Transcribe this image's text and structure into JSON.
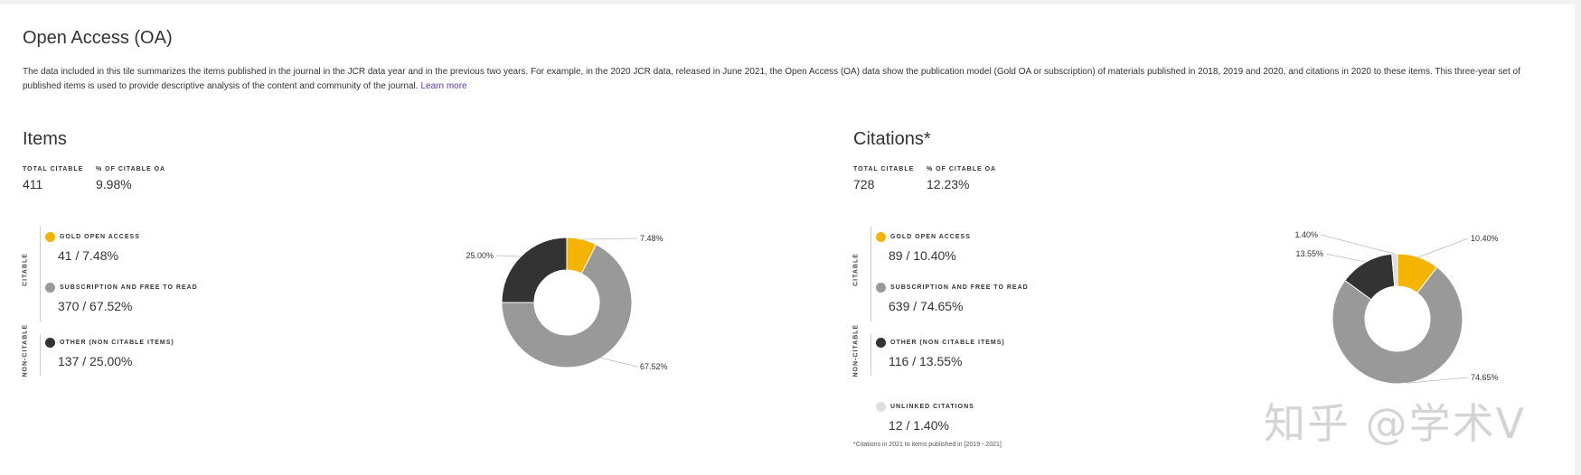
{
  "header": {
    "title": "Open Access (OA)",
    "description": "The data included in this tile summarizes the items published in the journal in the JCR data year and in the previous two years. For example, in the 2020 JCR data, released in June 2021, the Open Access (OA) data show the publication model (Gold OA or subscription) of materials published in 2018, 2019 and 2020, and citations in 2020 to these items. This three-year set of published items is used to provide descriptive analysis of the content and community of the journal.",
    "learn_more": "Learn more"
  },
  "items": {
    "title": "Items",
    "total_label": "TOTAL CITABLE",
    "total_value": "411",
    "pct_label": "% OF CITABLE OA",
    "pct_value": "9.98%",
    "citable_label": "CITABLE",
    "noncitable_label": "NON-CITABLE",
    "legend": [
      {
        "label": "GOLD OPEN ACCESS",
        "value": "41 / 7.48%",
        "color": "#f5b400"
      },
      {
        "label": "SUBSCRIPTION AND FREE TO READ",
        "value": "370 / 67.52%",
        "color": "#999999"
      },
      {
        "label": "OTHER (NON CITABLE ITEMS)",
        "value": "137 / 25.00%",
        "color": "#333333"
      }
    ]
  },
  "citations": {
    "title": "Citations*",
    "total_label": "TOTAL CITABLE",
    "total_value": "728",
    "pct_label": "% OF CITABLE OA",
    "pct_value": "12.23%",
    "citable_label": "CITABLE",
    "noncitable_label": "NON-CITABLE",
    "legend": [
      {
        "label": "GOLD OPEN ACCESS",
        "value": "89 / 10.40%",
        "color": "#f5b400"
      },
      {
        "label": "SUBSCRIPTION AND FREE TO READ",
        "value": "639 / 74.65%",
        "color": "#999999"
      },
      {
        "label": "OTHER (NON CITABLE ITEMS)",
        "value": "116 / 13.55%",
        "color": "#333333"
      },
      {
        "label": "UNLINKED CITATIONS",
        "value": "12 / 1.40%",
        "color": "#dddddd"
      }
    ],
    "footnote": "*Citations in 2021 to items published in [2019 - 2021]"
  },
  "chart_data": [
    {
      "type": "pie",
      "categories": [
        "Gold Open Access",
        "Subscription and Free to Read",
        "Other (Non Citable Items)"
      ],
      "values": [
        7.48,
        67.52,
        25.0
      ],
      "labels": [
        "7.48%",
        "67.52%",
        "25.00%"
      ],
      "colors": [
        "#f5b400",
        "#999999",
        "#333333"
      ]
    },
    {
      "type": "pie",
      "categories": [
        "Gold Open Access",
        "Subscription and Free to Read",
        "Other (Non Citable Items)",
        "Unlinked Citations"
      ],
      "values": [
        10.4,
        74.65,
        13.55,
        1.4
      ],
      "labels": [
        "10.40%",
        "74.65%",
        "13.55%",
        "1.40%"
      ],
      "colors": [
        "#f5b400",
        "#999999",
        "#333333",
        "#dddddd"
      ]
    }
  ],
  "watermark": "知乎 @学术V"
}
